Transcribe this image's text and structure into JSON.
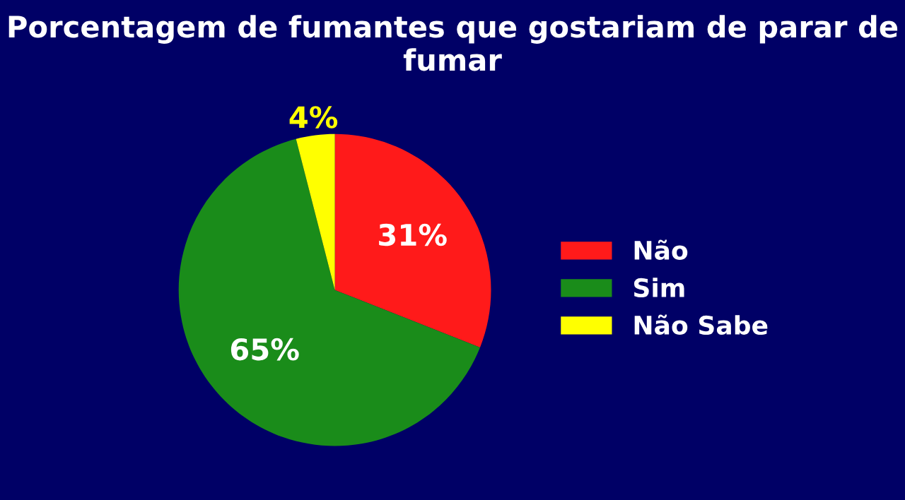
{
  "chart_data": {
    "type": "pie",
    "title": "Porcentagem de fumantes que gostariam de parar de fumar",
    "categories": [
      "Não",
      "Sim",
      "Não Sabe"
    ],
    "values": [
      31,
      65,
      4
    ],
    "colors": [
      "#ff1a1a",
      "#1a8c1a",
      "#ffff00"
    ],
    "value_labels": [
      "31%",
      "65%",
      "4%"
    ],
    "legend": "right"
  }
}
